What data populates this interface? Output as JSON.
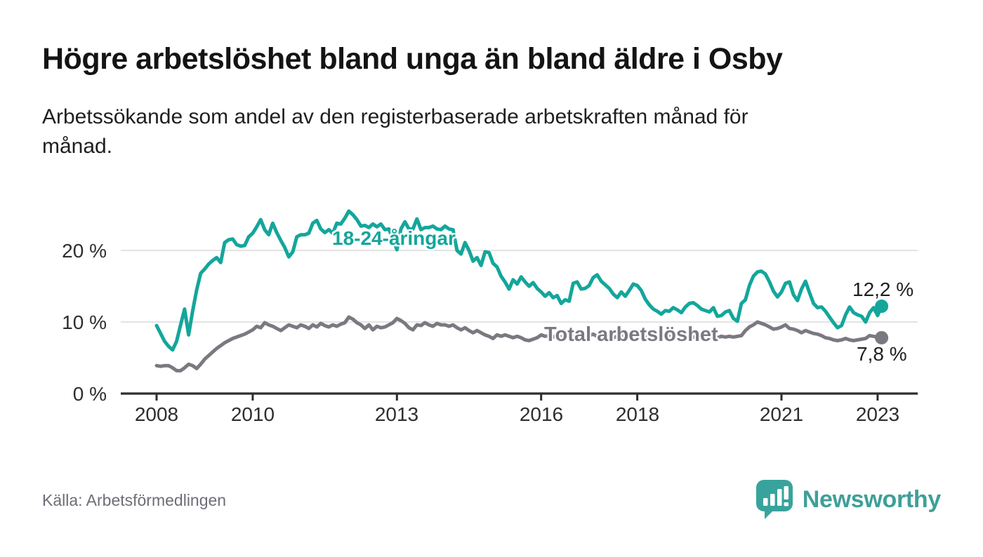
{
  "header": {
    "title": "Högre arbetslöshet bland unga än bland äldre i Osby",
    "subtitle_lines": [
      "Arbetssökande som andel av den registerbaserade arbetskraften månad för",
      "månad."
    ]
  },
  "chart_data": {
    "type": "line",
    "title": "Högre arbetslöshet bland unga än bland äldre i Osby",
    "x_start": "2008-01",
    "x_end": "2023-02",
    "frequency": "monthly",
    "x_ticks": [
      2008,
      2010,
      2013,
      2016,
      2018,
      2021,
      2023
    ],
    "x_tick_labels": [
      "2008",
      "2010",
      "2013",
      "2016",
      "2018",
      "2021",
      "2023"
    ],
    "y_tick_labels": [
      "20 %",
      "10 %",
      "0 %"
    ],
    "y_gridlines": [
      10,
      20
    ],
    "ylim": [
      0,
      26
    ],
    "grid": "horizontal",
    "colors": {
      "young": "#14a69b",
      "total": "#7b7980",
      "axis": "#2e2e2e",
      "gridline": "#dadada"
    },
    "series": [
      {
        "name": "18-24-åringar",
        "color": "#14a69b",
        "end_label": "12,2 %",
        "end_value": 12.2,
        "values": [
          9.5,
          8.4,
          7.3,
          6.6,
          6.1,
          7.3,
          9.6,
          11.8,
          8.2,
          11.5,
          14.5,
          16.8,
          17.4,
          18.1,
          18.6,
          19.0,
          18.3,
          21.1,
          21.5,
          21.6,
          20.8,
          20.6,
          20.7,
          21.9,
          22.4,
          23.3,
          24.3,
          22.9,
          22.2,
          23.8,
          22.5,
          21.4,
          20.4,
          19.1,
          19.8,
          21.9,
          22.2,
          22.2,
          22.4,
          23.8,
          24.2,
          23.0,
          22.5,
          22.9,
          22.4,
          23.8,
          23.7,
          24.5,
          25.5,
          25.0,
          24.3,
          23.4,
          23.5,
          23.2,
          23.7,
          23.3,
          23.7,
          22.9,
          23.0,
          21.5,
          20.1,
          23.0,
          24.0,
          23.0,
          23.0,
          24.4,
          22.9,
          23.2,
          23.2,
          23.4,
          23.0,
          22.9,
          23.4,
          23.0,
          22.9,
          20.0,
          19.5,
          21.1,
          20.0,
          18.5,
          19.0,
          17.9,
          19.8,
          19.7,
          18.2,
          17.7,
          16.4,
          15.6,
          14.6,
          15.9,
          15.3,
          16.3,
          15.6,
          15.0,
          15.5,
          14.7,
          14.2,
          13.6,
          14.1,
          13.4,
          13.7,
          12.6,
          13.1,
          12.9,
          15.4,
          15.6,
          14.6,
          14.7,
          15.1,
          16.2,
          16.6,
          15.7,
          15.2,
          14.7,
          13.9,
          13.4,
          14.2,
          13.6,
          14.4,
          15.3,
          15.1,
          14.4,
          13.2,
          12.4,
          11.8,
          11.5,
          11.1,
          11.6,
          11.5,
          12.0,
          11.7,
          11.3,
          12.1,
          12.6,
          12.7,
          12.3,
          11.8,
          11.6,
          11.4,
          12.0,
          10.8,
          10.9,
          11.4,
          11.6,
          10.5,
          10.1,
          12.6,
          13.1,
          15.1,
          16.4,
          17.0,
          17.1,
          16.7,
          15.6,
          14.3,
          13.5,
          14.2,
          15.4,
          15.6,
          13.8,
          13.0,
          14.6,
          15.7,
          14.1,
          12.6,
          12.0,
          12.1,
          11.5,
          10.7,
          9.9,
          9.2,
          9.5,
          11.0,
          12.1,
          11.3,
          11.0,
          10.8,
          10.0,
          11.3,
          12.0,
          10.9,
          12.2
        ]
      },
      {
        "name": "Total arbetslöshet",
        "color": "#7b7980",
        "end_label": "7,8 %",
        "end_value": 7.8,
        "values": [
          3.9,
          3.8,
          3.9,
          3.9,
          3.6,
          3.2,
          3.2,
          3.6,
          4.1,
          3.9,
          3.5,
          4.1,
          4.8,
          5.3,
          5.8,
          6.3,
          6.7,
          7.1,
          7.4,
          7.7,
          7.9,
          8.1,
          8.3,
          8.6,
          8.9,
          9.4,
          9.2,
          9.9,
          9.6,
          9.4,
          9.1,
          8.8,
          9.2,
          9.6,
          9.4,
          9.2,
          9.6,
          9.4,
          9.1,
          9.6,
          9.3,
          9.8,
          9.5,
          9.3,
          9.6,
          9.4,
          9.7,
          9.9,
          10.7,
          10.4,
          9.9,
          9.6,
          9.1,
          9.6,
          8.9,
          9.4,
          9.2,
          9.3,
          9.6,
          9.9,
          10.5,
          10.2,
          9.8,
          9.2,
          8.9,
          9.6,
          9.5,
          9.9,
          9.6,
          9.4,
          9.8,
          9.6,
          9.6,
          9.4,
          9.6,
          9.2,
          8.9,
          9.2,
          8.8,
          8.5,
          8.8,
          8.5,
          8.2,
          8.0,
          7.7,
          8.2,
          8.0,
          8.2,
          8.0,
          7.8,
          8.0,
          7.8,
          7.5,
          7.4,
          7.6,
          7.8,
          8.2,
          8.0,
          8.1,
          7.9,
          8.1,
          7.9,
          8.0,
          7.8,
          8.0,
          7.9,
          8.1,
          8.0,
          8.1,
          8.3,
          8.0,
          8.2,
          7.9,
          8.1,
          7.8,
          8.0,
          8.2,
          7.9,
          8.1,
          8.0,
          7.9,
          8.1,
          7.8,
          8.0,
          7.7,
          7.9,
          7.6,
          7.8,
          8.0,
          7.8,
          7.9,
          7.7,
          7.9,
          8.1,
          7.9,
          8.0,
          7.8,
          7.9,
          7.7,
          7.9,
          7.8,
          8.0,
          7.9,
          8.0,
          7.9,
          8.0,
          8.1,
          8.8,
          9.3,
          9.6,
          10.0,
          9.8,
          9.6,
          9.3,
          9.0,
          9.1,
          9.3,
          9.6,
          9.1,
          9.0,
          8.8,
          8.5,
          8.8,
          8.6,
          8.4,
          8.3,
          8.1,
          7.8,
          7.7,
          7.5,
          7.4,
          7.5,
          7.7,
          7.5,
          7.4,
          7.5,
          7.6,
          7.7,
          8.1,
          8.0,
          7.9,
          7.8
        ]
      }
    ]
  },
  "footer": {
    "source": "Källa: Arbetsförmedlingen",
    "brand": "Newsworthy"
  }
}
